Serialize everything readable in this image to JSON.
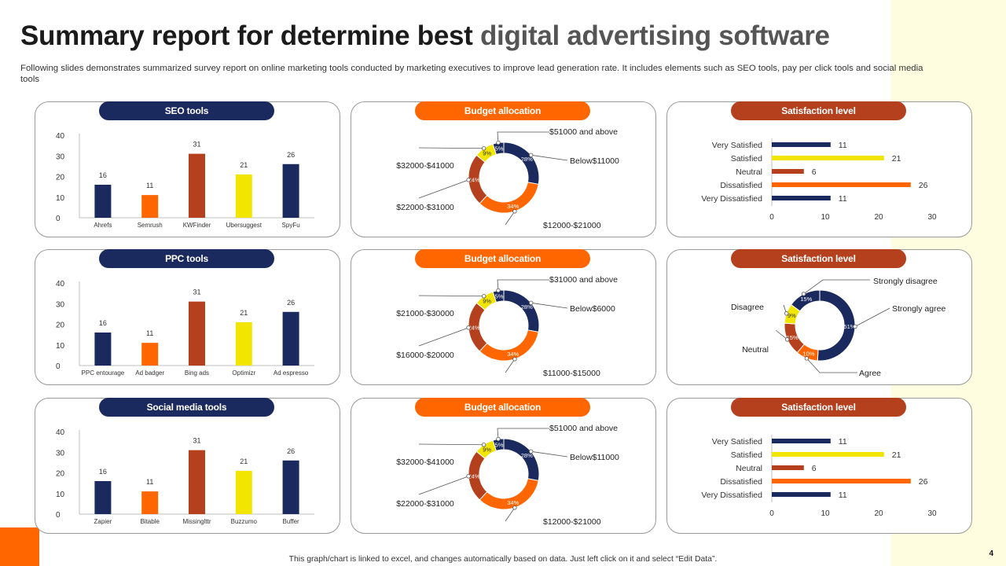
{
  "title_main": "Summary report for determine best ",
  "title_tail": "digital advertising software",
  "subtitle": "Following slides demonstrates summarized survey report on online marketing tools conducted by marketing executives to improve lead generation rate. It includes elements such as SEO tools, pay per click tools and social media tools",
  "footer_note": "This graph/chart is linked to excel, and changes automatically based on data. Just left click on it and select “Edit Data”.",
  "page_number": "4",
  "colors": {
    "navy": "#1b2a5e",
    "orange": "#ff6600",
    "rust": "#b5401d",
    "yellow": "#f2e600",
    "band": "#fffde0"
  },
  "cards": [
    {
      "header": "SEO tools",
      "header_color": "#1b2a5e"
    },
    {
      "header": "Budget allocation",
      "header_color": "#ff6600"
    },
    {
      "header": "Satisfaction level",
      "header_color": "#b5401d"
    },
    {
      "header": "PPC tools",
      "header_color": "#1b2a5e"
    },
    {
      "header": "Budget allocation",
      "header_color": "#ff6600"
    },
    {
      "header": "Satisfaction level",
      "header_color": "#b5401d"
    },
    {
      "header": "Social media tools",
      "header_color": "#1b2a5e"
    },
    {
      "header": "Budget allocation",
      "header_color": "#ff6600"
    },
    {
      "header": "Satisfaction level",
      "header_color": "#b5401d"
    }
  ],
  "chart_data": [
    {
      "type": "bar",
      "title": "SEO tools",
      "categories": [
        "Ahrefs",
        "Semrush",
        "KWFinder",
        "Ubersuggest",
        "SpyFu"
      ],
      "values": [
        16,
        11,
        31,
        21,
        26
      ],
      "bar_colors": [
        "#1b2a5e",
        "#ff6600",
        "#b5401d",
        "#f2e600",
        "#1b2a5e"
      ],
      "ylim": [
        0,
        40
      ],
      "yticks": [
        0,
        10,
        20,
        30,
        40
      ]
    },
    {
      "type": "pie",
      "title": "Budget allocation",
      "values": [
        28,
        34,
        24,
        9,
        5
      ],
      "percent_labels": [
        "28%",
        "34%",
        "24%",
        "9%",
        "5%"
      ],
      "colors": [
        "#1b2a5e",
        "#ff6600",
        "#b5401d",
        "#f2e600",
        "#1b2a5e"
      ],
      "category_labels": [
        "Below$11000",
        "$12000-$21000",
        "$22000-$31000",
        "$32000-$41000",
        "$51000 and above"
      ]
    },
    {
      "type": "bar",
      "orientation": "horizontal",
      "title": "Satisfaction level",
      "categories": [
        "Very Satisfied",
        "Satisfied",
        "Neutral",
        "Dissatisfied",
        "Very Dissatisfied"
      ],
      "values": [
        11,
        21,
        6,
        26,
        11
      ],
      "bar_colors": [
        "#1b2a5e",
        "#f2e600",
        "#b5401d",
        "#ff6600",
        "#1b2a5e"
      ],
      "xlim": [
        0,
        30
      ],
      "xticks": [
        0,
        10,
        20,
        30
      ]
    },
    {
      "type": "bar",
      "title": "PPC tools",
      "categories": [
        "PPC entourage",
        "Ad badger",
        "Bing ads",
        "Optimizr",
        "Ad espresso"
      ],
      "values": [
        16,
        11,
        31,
        21,
        26
      ],
      "bar_colors": [
        "#1b2a5e",
        "#ff6600",
        "#b5401d",
        "#f2e600",
        "#1b2a5e"
      ],
      "ylim": [
        0,
        40
      ],
      "yticks": [
        0,
        10,
        20,
        30,
        40
      ]
    },
    {
      "type": "pie",
      "title": "Budget allocation",
      "values": [
        28,
        34,
        24,
        9,
        5
      ],
      "percent_labels": [
        "28%",
        "34%",
        "24%",
        "9%",
        "5%"
      ],
      "colors": [
        "#1b2a5e",
        "#ff6600",
        "#b5401d",
        "#f2e600",
        "#1b2a5e"
      ],
      "category_labels": [
        "Below$6000",
        "$11000-$15000",
        "$16000-$20000",
        "$21000-$30000",
        "$31000 and above"
      ]
    },
    {
      "type": "pie",
      "title": "Satisfaction level",
      "values": [
        51,
        10,
        15,
        9,
        15
      ],
      "percent_labels": [
        "51%",
        "10%",
        "15%",
        "9%",
        "15%"
      ],
      "colors": [
        "#1b2a5e",
        "#ff6600",
        "#b5401d",
        "#f2e600",
        "#1b2a5e"
      ],
      "category_labels": [
        "Strongly agree",
        "Agree",
        "Neutral",
        "Disagree",
        "Strongly disagree"
      ]
    },
    {
      "type": "bar",
      "title": "Social media tools",
      "categories": [
        "Zapier",
        "Bitable",
        "Missinglttr",
        "Buzzumo",
        "Buffer"
      ],
      "values": [
        16,
        11,
        31,
        21,
        26
      ],
      "bar_colors": [
        "#1b2a5e",
        "#ff6600",
        "#b5401d",
        "#f2e600",
        "#1b2a5e"
      ],
      "ylim": [
        0,
        40
      ],
      "yticks": [
        0,
        10,
        20,
        30,
        40
      ]
    },
    {
      "type": "pie",
      "title": "Budget allocation",
      "values": [
        28,
        34,
        24,
        9,
        5
      ],
      "percent_labels": [
        "28%",
        "34%",
        "24%",
        "9%",
        "5%"
      ],
      "colors": [
        "#1b2a5e",
        "#ff6600",
        "#b5401d",
        "#f2e600",
        "#1b2a5e"
      ],
      "category_labels": [
        "Below$11000",
        "$12000-$21000",
        "$22000-$31000",
        "$32000-$41000",
        "$51000 and above"
      ]
    },
    {
      "type": "bar",
      "orientation": "horizontal",
      "title": "Satisfaction level",
      "categories": [
        "Very Satisfied",
        "Satisfied",
        "Neutral",
        "Dissatisfied",
        "Very Dissatisfied"
      ],
      "values": [
        11,
        21,
        6,
        26,
        11
      ],
      "bar_colors": [
        "#1b2a5e",
        "#f2e600",
        "#b5401d",
        "#ff6600",
        "#1b2a5e"
      ],
      "xlim": [
        0,
        30
      ],
      "xticks": [
        0,
        10,
        20,
        30
      ]
    }
  ]
}
